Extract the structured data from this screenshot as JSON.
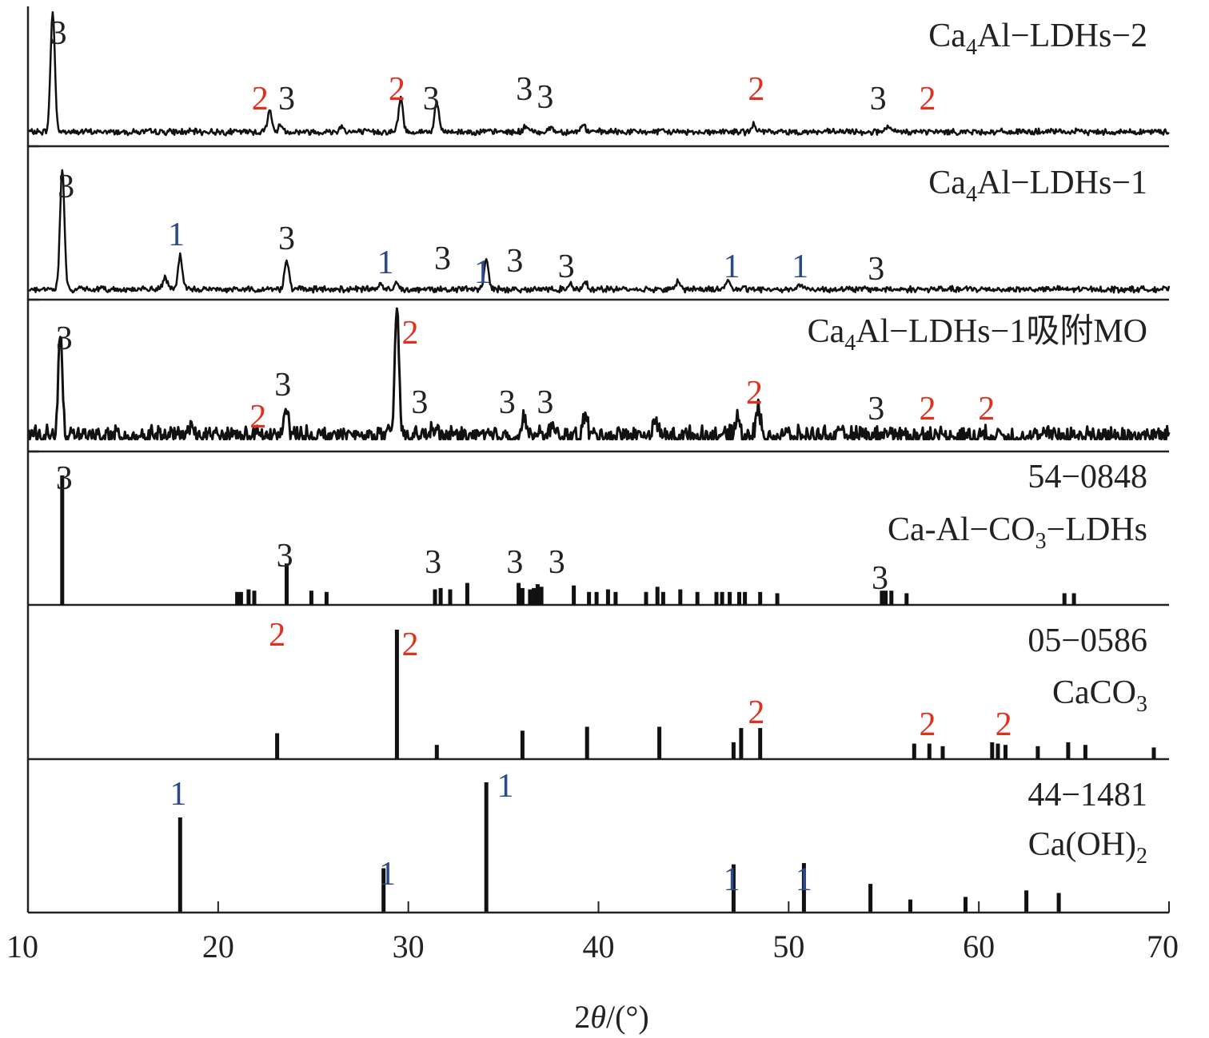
{
  "chart_data": {
    "type": "line",
    "xlabel": "2θ/(°)",
    "xlim": [
      10,
      70
    ],
    "x_ticks": [
      "10",
      "20",
      "30",
      "40",
      "50",
      "60",
      "70"
    ],
    "marker_colors": {
      "1": "#2a4a8c",
      "2": "#e0311f",
      "3": "#222222"
    },
    "panels": [
      {
        "id": "ldh2",
        "kind": "pattern",
        "label_main": "Ca",
        "label_sub": "4",
        "label_rest": "Al−LDHs−2",
        "noise": 0.02,
        "peaks": [
          [
            11.3,
            1.0
          ],
          [
            22.7,
            0.18
          ],
          [
            23.3,
            0.06
          ],
          [
            26.5,
            0.05
          ],
          [
            29.6,
            0.28
          ],
          [
            31.5,
            0.24
          ],
          [
            36.2,
            0.05
          ],
          [
            37.5,
            0.04
          ],
          [
            39.2,
            0.06
          ],
          [
            48.2,
            0.06
          ],
          [
            55.2,
            0.04
          ]
        ],
        "markers": [
          [
            11.6,
            "3"
          ],
          [
            22.2,
            "2"
          ],
          [
            23.6,
            "3"
          ],
          [
            29.4,
            "2"
          ],
          [
            31.2,
            "3"
          ],
          [
            36.1,
            "3"
          ],
          [
            37.2,
            "3"
          ],
          [
            48.3,
            "2"
          ],
          [
            54.7,
            "3"
          ],
          [
            57.3,
            "2"
          ]
        ]
      },
      {
        "id": "ldh1",
        "kind": "pattern",
        "label_main": "Ca",
        "label_sub": "4",
        "label_rest": "Al−LDHs−1",
        "noise": 0.02,
        "peaks": [
          [
            11.8,
            1.0
          ],
          [
            17.2,
            0.1
          ],
          [
            18.0,
            0.28
          ],
          [
            23.6,
            0.25
          ],
          [
            28.5,
            0.04
          ],
          [
            29.4,
            0.06
          ],
          [
            34.1,
            0.25
          ],
          [
            38.5,
            0.05
          ],
          [
            39.3,
            0.07
          ],
          [
            44.2,
            0.07
          ],
          [
            46.8,
            0.08
          ],
          [
            50.6,
            0.05
          ]
        ],
        "markers": [
          [
            12.0,
            "3"
          ],
          [
            17.8,
            "1"
          ],
          [
            23.6,
            "3"
          ],
          [
            28.8,
            "1"
          ],
          [
            31.8,
            "3"
          ],
          [
            33.9,
            "1"
          ],
          [
            35.6,
            "3"
          ],
          [
            38.3,
            "3"
          ],
          [
            47.0,
            "1"
          ],
          [
            50.6,
            "1"
          ],
          [
            54.6,
            "3"
          ]
        ]
      },
      {
        "id": "ldh1mo",
        "kind": "pattern",
        "label_main": "Ca",
        "label_sub": "4",
        "label_rest": "Al−LDHs−1吸附MO",
        "noise": 0.06,
        "peaks": [
          [
            11.7,
            0.78
          ],
          [
            18.5,
            0.06
          ],
          [
            23.6,
            0.22
          ],
          [
            29.4,
            1.0
          ],
          [
            31.3,
            0.08
          ],
          [
            36.1,
            0.14
          ],
          [
            37.5,
            0.07
          ],
          [
            39.3,
            0.17
          ],
          [
            43.0,
            0.13
          ],
          [
            47.3,
            0.16
          ],
          [
            48.4,
            0.22
          ],
          [
            55.3,
            0.04
          ]
        ],
        "markers": [
          [
            11.9,
            "3"
          ],
          [
            22.1,
            "2"
          ],
          [
            23.4,
            "3"
          ],
          [
            30.1,
            "2"
          ],
          [
            30.6,
            "3"
          ],
          [
            35.2,
            "3"
          ],
          [
            37.2,
            "3"
          ],
          [
            48.2,
            "2"
          ],
          [
            54.6,
            "3"
          ],
          [
            57.3,
            "2"
          ],
          [
            60.4,
            "2"
          ]
        ]
      },
      {
        "id": "ref_ldh",
        "kind": "sticks",
        "label_line1": "54−0848",
        "label_main": "Ca-Al−CO",
        "label_sub": "3",
        "label_rest": "−LDHs",
        "sticks": [
          [
            11.8,
            1.0
          ],
          [
            21.0,
            0.1
          ],
          [
            21.2,
            0.1
          ],
          [
            21.6,
            0.12
          ],
          [
            21.9,
            0.11
          ],
          [
            23.6,
            0.32
          ],
          [
            24.9,
            0.11
          ],
          [
            25.7,
            0.1
          ],
          [
            31.4,
            0.12
          ],
          [
            31.7,
            0.13
          ],
          [
            32.2,
            0.12
          ],
          [
            33.1,
            0.17
          ],
          [
            35.8,
            0.17
          ],
          [
            36.0,
            0.13
          ],
          [
            36.4,
            0.12
          ],
          [
            36.6,
            0.13
          ],
          [
            36.8,
            0.16
          ],
          [
            37.0,
            0.14
          ],
          [
            38.7,
            0.15
          ],
          [
            39.5,
            0.1
          ],
          [
            39.9,
            0.1
          ],
          [
            40.5,
            0.12
          ],
          [
            40.9,
            0.1
          ],
          [
            42.5,
            0.1
          ],
          [
            43.1,
            0.14
          ],
          [
            43.4,
            0.1
          ],
          [
            44.3,
            0.12
          ],
          [
            45.2,
            0.1
          ],
          [
            46.2,
            0.1
          ],
          [
            46.5,
            0.1
          ],
          [
            46.9,
            0.1
          ],
          [
            47.4,
            0.1
          ],
          [
            47.7,
            0.1
          ],
          [
            48.5,
            0.1
          ],
          [
            49.4,
            0.09
          ],
          [
            54.9,
            0.11
          ],
          [
            55.1,
            0.11
          ],
          [
            55.4,
            0.11
          ],
          [
            56.2,
            0.09
          ],
          [
            64.5,
            0.09
          ],
          [
            65.0,
            0.09
          ]
        ],
        "markers": [
          [
            11.9,
            "3"
          ],
          [
            23.5,
            "3"
          ],
          [
            31.3,
            "3"
          ],
          [
            35.6,
            "3"
          ],
          [
            37.8,
            "3"
          ],
          [
            54.8,
            "3"
          ]
        ]
      },
      {
        "id": "ref_caco3",
        "kind": "sticks",
        "label_line1": "05−0586",
        "label_main": "CaCO",
        "label_sub": "3",
        "label_rest": "",
        "sticks": [
          [
            23.1,
            0.2
          ],
          [
            29.4,
            1.0
          ],
          [
            31.5,
            0.11
          ],
          [
            36.0,
            0.22
          ],
          [
            39.4,
            0.25
          ],
          [
            43.2,
            0.25
          ],
          [
            47.1,
            0.13
          ],
          [
            47.5,
            0.24
          ],
          [
            48.5,
            0.24
          ],
          [
            56.6,
            0.12
          ],
          [
            57.4,
            0.12
          ],
          [
            58.1,
            0.1
          ],
          [
            60.7,
            0.13
          ],
          [
            61.0,
            0.12
          ],
          [
            61.4,
            0.11
          ],
          [
            63.1,
            0.1
          ],
          [
            64.7,
            0.13
          ],
          [
            65.6,
            0.11
          ],
          [
            69.2,
            0.09
          ]
        ],
        "markers": [
          [
            23.1,
            "2"
          ],
          [
            30.1,
            "2"
          ],
          [
            48.3,
            "2"
          ],
          [
            57.3,
            "2"
          ],
          [
            61.3,
            "2"
          ]
        ]
      },
      {
        "id": "ref_caoh2",
        "kind": "sticks",
        "label_line1": "44−1481",
        "label_main": "Ca(OH)",
        "label_sub": "2",
        "label_rest": "",
        "sticks": [
          [
            18.0,
            0.73
          ],
          [
            28.7,
            0.34
          ],
          [
            34.1,
            1.0
          ],
          [
            47.1,
            0.37
          ],
          [
            50.8,
            0.38
          ],
          [
            54.3,
            0.22
          ],
          [
            56.4,
            0.1
          ],
          [
            59.3,
            0.12
          ],
          [
            62.5,
            0.17
          ],
          [
            64.2,
            0.15
          ]
        ],
        "markers": [
          [
            17.9,
            "1"
          ],
          [
            28.9,
            "1"
          ],
          [
            35.1,
            "1"
          ],
          [
            47.0,
            "1"
          ],
          [
            50.8,
            "1"
          ]
        ]
      }
    ]
  }
}
